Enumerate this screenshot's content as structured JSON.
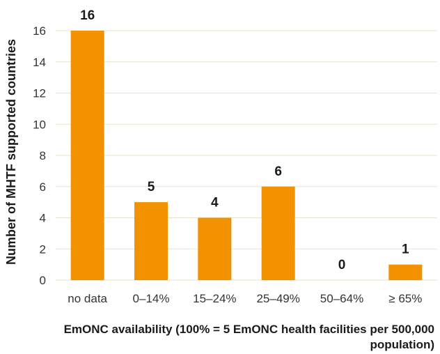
{
  "chart_data": {
    "type": "bar",
    "categories": [
      "no data",
      "0–14%",
      "15–24%",
      "25–49%",
      "50–64%",
      "≥ 65%"
    ],
    "values": [
      16,
      5,
      4,
      6,
      0,
      1
    ],
    "data_labels": [
      "16",
      "5",
      "4",
      "6",
      "0",
      "1"
    ],
    "ylabel": "Number of MHTF supported countries",
    "xlabel": "EmONC availability (100% = 5 EmONC health facilities per 500,000 population)",
    "ylim": [
      0,
      16
    ],
    "yticks": [
      0,
      2,
      4,
      6,
      8,
      10,
      12,
      14,
      16
    ],
    "grid": true,
    "bar_color": "#f39200",
    "grid_color": "#e8e3c8"
  }
}
